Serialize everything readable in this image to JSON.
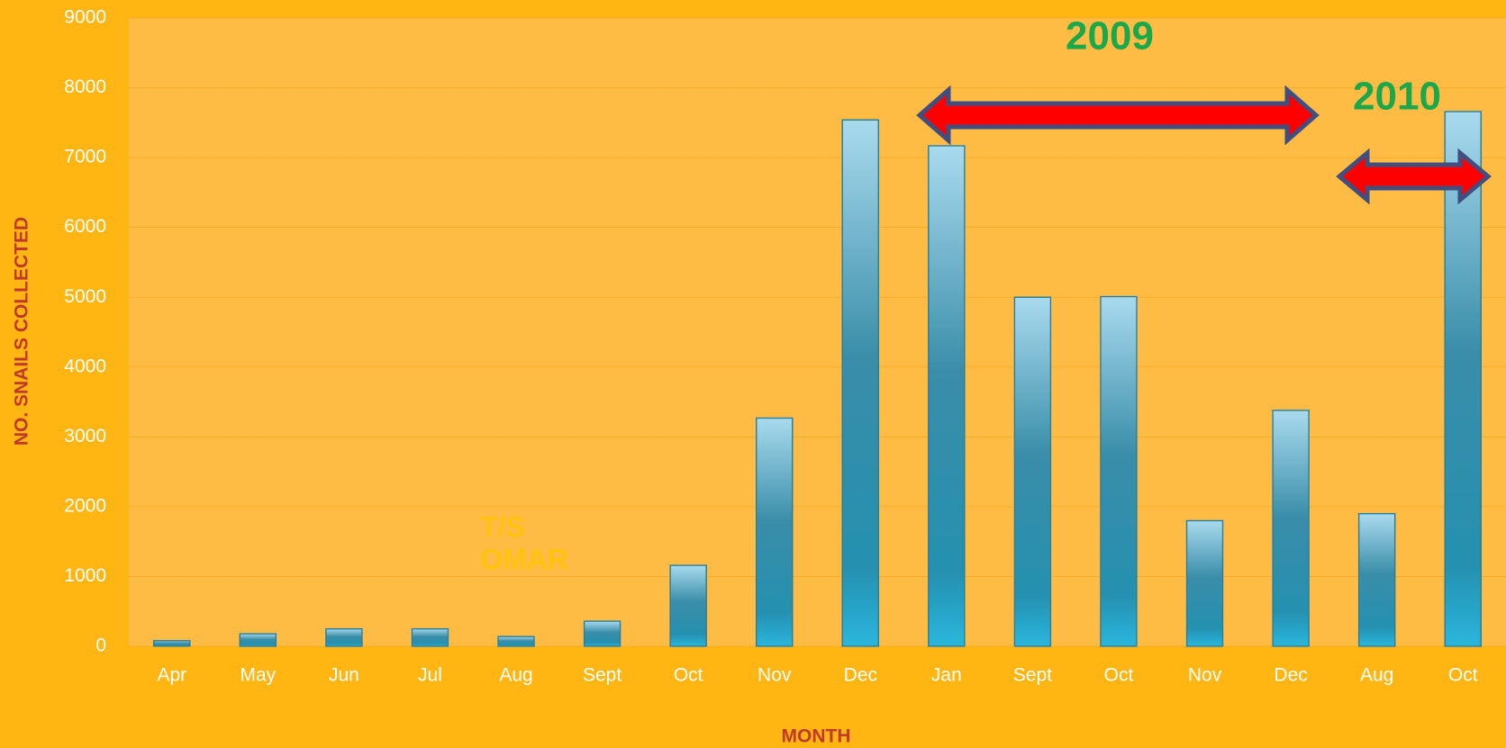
{
  "chart_data": {
    "type": "bar",
    "categories": [
      "Apr",
      "May",
      "Jun",
      "Jul",
      "Aug",
      "Sept",
      "Oct",
      "Nov",
      "Dec",
      "Jan",
      "Sept",
      "Oct",
      "Nov",
      "Dec",
      "Aug",
      "Oct"
    ],
    "values": [
      80,
      180,
      250,
      250,
      140,
      360,
      1160,
      3270,
      7540,
      7170,
      5000,
      5010,
      1800,
      3380,
      1900,
      7660
    ],
    "ylim": [
      0,
      9000
    ],
    "yticks": [
      0,
      1000,
      2000,
      3000,
      4000,
      5000,
      6000,
      7000,
      8000,
      9000
    ],
    "grid": true,
    "y_label": "NO. SNAILS COLLECTED",
    "x_label": "MONTH",
    "annotations": [
      "2009",
      "2010",
      "T/S",
      "OMAR"
    ]
  }
}
